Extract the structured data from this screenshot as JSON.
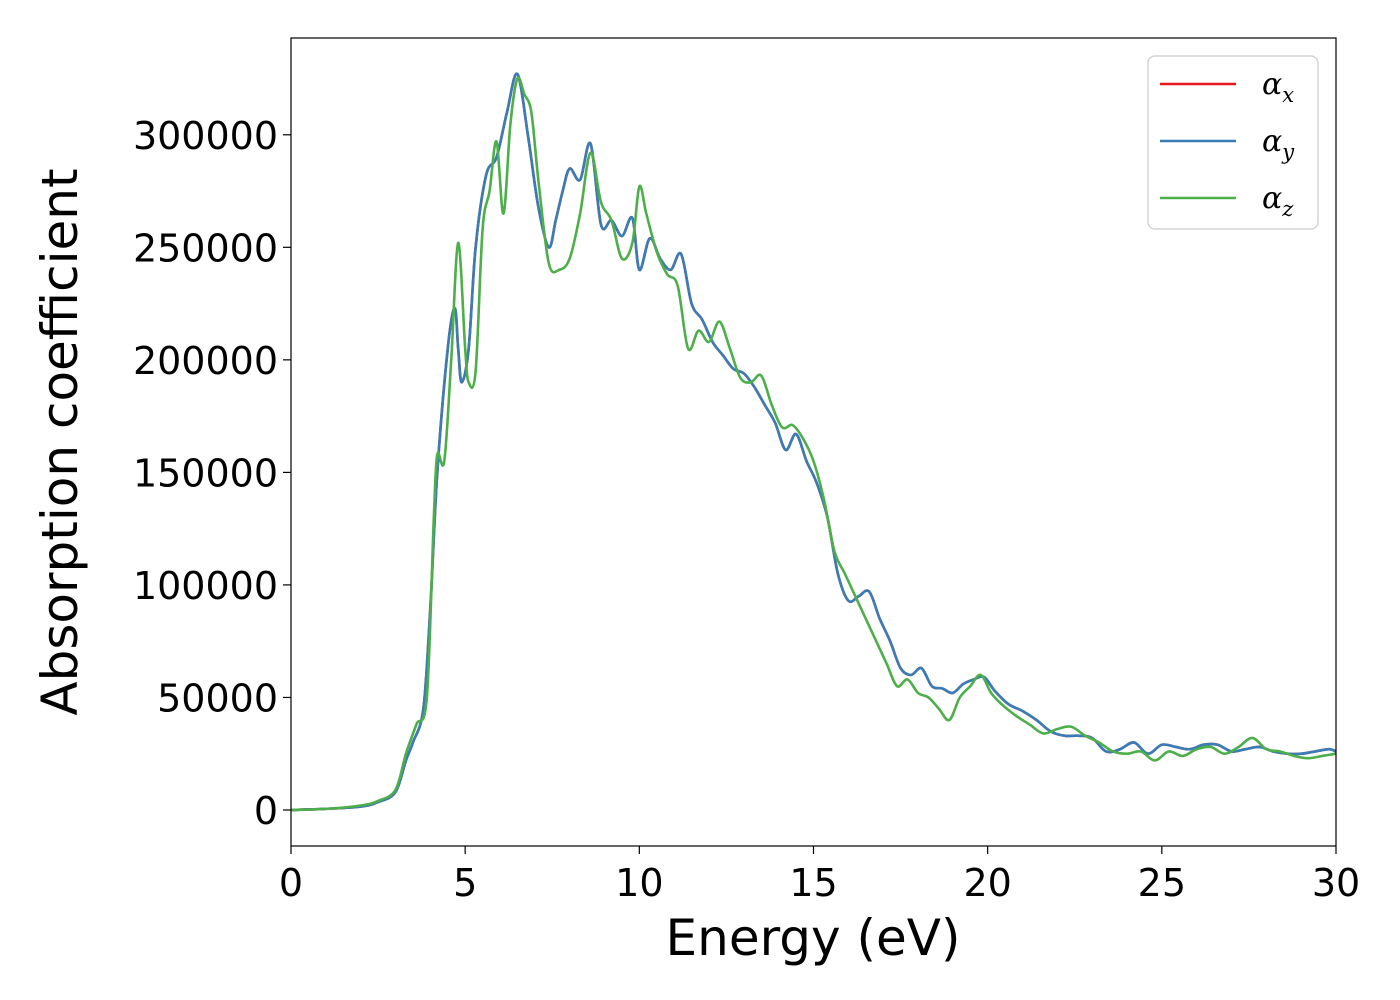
{
  "chart_data": {
    "type": "line",
    "xlabel": "Energy (eV)",
    "ylabel": "Absorption coefficient",
    "xlim": [
      0,
      30
    ],
    "ylim": [
      -16000,
      343000
    ],
    "xticks": [
      0,
      5,
      10,
      15,
      20,
      25,
      30
    ],
    "yticks": [
      0,
      50000,
      100000,
      150000,
      200000,
      250000,
      300000
    ],
    "grid": false,
    "legend_position": "top-right",
    "series": [
      {
        "name": "α_x",
        "base": "α",
        "sub": "x",
        "color": "#e41a1c",
        "x": [
          0,
          1,
          2,
          2.5,
          3,
          3.3,
          3.5,
          3.8,
          4,
          4.2,
          4.5,
          4.7,
          4.8,
          4.9,
          5.1,
          5.3,
          5.6,
          5.9,
          6.2,
          6.5,
          6.8,
          7.1,
          7.4,
          7.6,
          7.8,
          8,
          8.3,
          8.6,
          8.9,
          9.2,
          9.5,
          9.8,
          10,
          10.3,
          10.6,
          10.9,
          11.2,
          11.5,
          11.8,
          12.1,
          12.4,
          12.7,
          13,
          13.3,
          13.6,
          13.9,
          14.2,
          14.5,
          14.8,
          15.1,
          15.4,
          15.7,
          16,
          16.3,
          16.6,
          16.9,
          17.2,
          17.5,
          17.8,
          18.1,
          18.4,
          18.7,
          19,
          19.3,
          19.6,
          19.9,
          20.2,
          20.6,
          21,
          21.4,
          21.8,
          22.2,
          22.6,
          23,
          23.4,
          23.8,
          24.2,
          24.6,
          25,
          25.4,
          25.8,
          26.2,
          26.6,
          27,
          27.4,
          27.8,
          28.2,
          28.6,
          29,
          29.4,
          29.8,
          30
        ],
        "values": [
          0,
          500,
          1500,
          3500,
          8000,
          22000,
          30000,
          45000,
          90000,
          150000,
          205000,
          223000,
          205000,
          190000,
          205000,
          250000,
          282000,
          290000,
          310000,
          327000,
          300000,
          268000,
          250000,
          262000,
          275000,
          285000,
          280000,
          296000,
          260000,
          262000,
          255000,
          263000,
          240000,
          254000,
          245000,
          240000,
          247000,
          225000,
          218000,
          208000,
          202000,
          196000,
          194000,
          188000,
          180000,
          172000,
          160000,
          167000,
          155000,
          145000,
          130000,
          105000,
          93000,
          95000,
          97000,
          85000,
          75000,
          63000,
          60000,
          63000,
          55000,
          54000,
          52000,
          56000,
          58000,
          59000,
          53000,
          47000,
          44000,
          40000,
          35000,
          33000,
          33000,
          32000,
          26000,
          27000,
          30000,
          25000,
          29000,
          28000,
          27000,
          29000,
          29000,
          26000,
          27000,
          28000,
          26000,
          25000,
          25000,
          26000,
          27000,
          26000
        ]
      },
      {
        "name": "α_y",
        "base": "α",
        "sub": "y",
        "color": "#377eb8",
        "x": [
          0,
          1,
          2,
          2.5,
          3,
          3.3,
          3.5,
          3.8,
          4,
          4.2,
          4.5,
          4.7,
          4.8,
          4.9,
          5.1,
          5.3,
          5.6,
          5.9,
          6.2,
          6.5,
          6.8,
          7.1,
          7.4,
          7.6,
          7.8,
          8,
          8.3,
          8.6,
          8.9,
          9.2,
          9.5,
          9.8,
          10,
          10.3,
          10.6,
          10.9,
          11.2,
          11.5,
          11.8,
          12.1,
          12.4,
          12.7,
          13,
          13.3,
          13.6,
          13.9,
          14.2,
          14.5,
          14.8,
          15.1,
          15.4,
          15.7,
          16,
          16.3,
          16.6,
          16.9,
          17.2,
          17.5,
          17.8,
          18.1,
          18.4,
          18.7,
          19,
          19.3,
          19.6,
          19.9,
          20.2,
          20.6,
          21,
          21.4,
          21.8,
          22.2,
          22.6,
          23,
          23.4,
          23.8,
          24.2,
          24.6,
          25,
          25.4,
          25.8,
          26.2,
          26.6,
          27,
          27.4,
          27.8,
          28.2,
          28.6,
          29,
          29.4,
          29.8,
          30
        ],
        "values": [
          0,
          500,
          1500,
          3500,
          8000,
          22000,
          30000,
          45000,
          90000,
          150000,
          205000,
          223000,
          205000,
          190000,
          205000,
          250000,
          282000,
          290000,
          310000,
          327000,
          300000,
          268000,
          250000,
          262000,
          275000,
          285000,
          280000,
          296000,
          260000,
          262000,
          255000,
          263000,
          240000,
          254000,
          245000,
          240000,
          247000,
          225000,
          218000,
          208000,
          202000,
          196000,
          194000,
          188000,
          180000,
          172000,
          160000,
          167000,
          155000,
          145000,
          130000,
          105000,
          93000,
          95000,
          97000,
          85000,
          75000,
          63000,
          60000,
          63000,
          55000,
          54000,
          52000,
          56000,
          58000,
          59000,
          53000,
          47000,
          44000,
          40000,
          35000,
          33000,
          33000,
          32000,
          26000,
          27000,
          30000,
          25000,
          29000,
          28000,
          27000,
          29000,
          29000,
          26000,
          27000,
          28000,
          26000,
          25000,
          25000,
          26000,
          27000,
          26000
        ]
      },
      {
        "name": "α_z",
        "base": "α",
        "sub": "z",
        "color": "#4daf4a",
        "x": [
          0,
          1,
          2,
          2.5,
          3,
          3.3,
          3.6,
          3.9,
          4.1,
          4.2,
          4.4,
          4.6,
          4.8,
          5,
          5.1,
          5.3,
          5.5,
          5.7,
          5.9,
          6.1,
          6.3,
          6.5,
          6.7,
          6.9,
          7.1,
          7.4,
          7.7,
          8,
          8.3,
          8.6,
          8.9,
          9.2,
          9.5,
          9.8,
          10,
          10.2,
          10.5,
          10.8,
          11.1,
          11.4,
          11.7,
          12,
          12.3,
          12.6,
          12.9,
          13.2,
          13.5,
          13.8,
          14.1,
          14.4,
          14.7,
          15,
          15.3,
          15.6,
          15.9,
          16.2,
          16.5,
          16.8,
          17.1,
          17.4,
          17.7,
          18,
          18.3,
          18.6,
          18.9,
          19.2,
          19.5,
          19.8,
          20.1,
          20.4,
          20.8,
          21.2,
          21.6,
          22,
          22.4,
          22.8,
          23.2,
          23.6,
          24,
          24.4,
          24.8,
          25.2,
          25.6,
          26,
          26.4,
          26.8,
          27.2,
          27.6,
          28,
          28.4,
          28.8,
          29.2,
          29.6,
          30
        ],
        "values": [
          0,
          500,
          2000,
          4000,
          9000,
          25000,
          38000,
          50000,
          130000,
          158000,
          155000,
          200000,
          252000,
          205000,
          190000,
          195000,
          258000,
          275000,
          297000,
          265000,
          305000,
          325000,
          318000,
          310000,
          280000,
          243000,
          240000,
          245000,
          265000,
          292000,
          270000,
          262000,
          245000,
          252000,
          277000,
          265000,
          248000,
          238000,
          233000,
          205000,
          213000,
          208000,
          217000,
          205000,
          192000,
          190000,
          193000,
          180000,
          170000,
          171000,
          165000,
          155000,
          138000,
          115000,
          105000,
          95000,
          85000,
          75000,
          65000,
          55000,
          58000,
          52000,
          50000,
          45000,
          40000,
          50000,
          55000,
          60000,
          52000,
          47000,
          42000,
          38000,
          34000,
          36000,
          37000,
          33000,
          30000,
          26000,
          25000,
          26000,
          22000,
          26000,
          24000,
          27000,
          28000,
          25000,
          28000,
          32000,
          27000,
          26000,
          24000,
          23000,
          24000,
          25000
        ]
      }
    ]
  }
}
